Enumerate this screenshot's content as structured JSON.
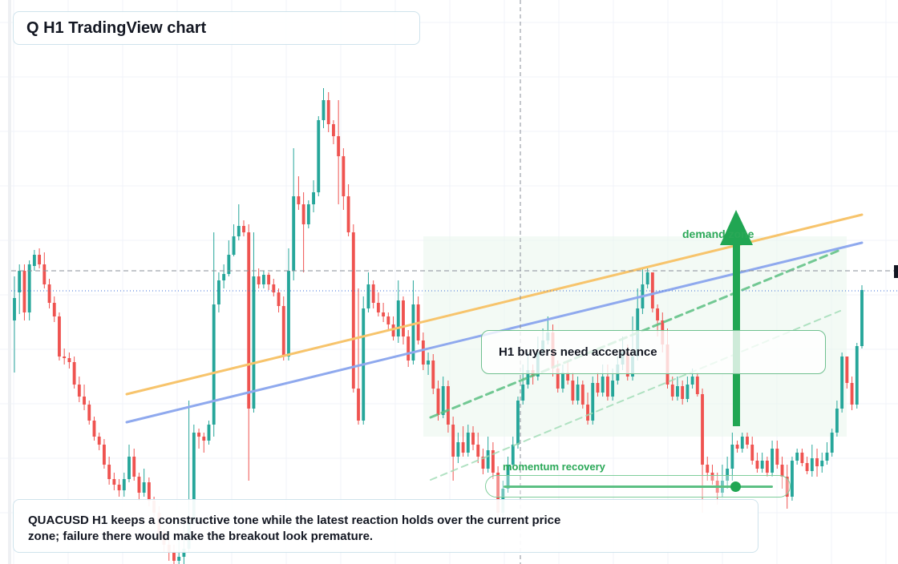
{
  "title": "Q H1 TradingView chart",
  "callout": {
    "text": "H1 buyers need acceptance"
  },
  "demand_zone": {
    "label": "demand zone"
  },
  "momentum": {
    "label": "momentum recovery",
    "level": 0.9
  },
  "note": {
    "text": "QUACUSD H1 keeps a constructive tone while the latest reaction holds over the current price zone; failure there would make the breakout look premature."
  },
  "colors": {
    "bull": "#26a69a",
    "bear": "#ef5350",
    "orange_line": "#f7c46c",
    "blue_line": "#8fa9ee",
    "green_accent": "#21a653",
    "zone_fill": "#e8f6ec"
  },
  "chart_data": {
    "type": "candlestick",
    "symbol": "QUACUSD",
    "timeframe": "H1",
    "ylim": [
      0,
      704
    ],
    "ohlc": [
      [
        400,
        372,
        465,
        345
      ],
      [
        365,
        338,
        392,
        330
      ],
      [
        338,
        390,
        400,
        330
      ],
      [
        390,
        330,
        400,
        325
      ],
      [
        332,
        318,
        338,
        312
      ],
      [
        318,
        330,
        335,
        310
      ],
      [
        330,
        355,
        360,
        315
      ],
      [
        355,
        378,
        385,
        348
      ],
      [
        378,
        395,
        402,
        370
      ],
      [
        395,
        445,
        450,
        390
      ],
      [
        445,
        447,
        455,
        435
      ],
      [
        447,
        452,
        460,
        440
      ],
      [
        452,
        480,
        485,
        445
      ],
      [
        480,
        495,
        502,
        470
      ],
      [
        495,
        505,
        512,
        480
      ],
      [
        505,
        525,
        530,
        500
      ],
      [
        525,
        545,
        550,
        520
      ],
      [
        545,
        555,
        562,
        540
      ],
      [
        555,
        580,
        585,
        548
      ],
      [
        580,
        598,
        605,
        570
      ],
      [
        598,
        605,
        612,
        590
      ],
      [
        605,
        612,
        620,
        598
      ],
      [
        612,
        598,
        620,
        590
      ],
      [
        598,
        570,
        602,
        555
      ],
      [
        570,
        595,
        600,
        560
      ],
      [
        595,
        615,
        625,
        590
      ],
      [
        615,
        602,
        620,
        585
      ],
      [
        602,
        625,
        632,
        596
      ],
      [
        625,
        640,
        655,
        620
      ],
      [
        640,
        665,
        672,
        632
      ],
      [
        665,
        680,
        690,
        660
      ],
      [
        680,
        690,
        700,
        670
      ],
      [
        690,
        700,
        704,
        680
      ],
      [
        700,
        695,
        704,
        670
      ],
      [
        695,
        685,
        704,
        650
      ],
      [
        685,
        650,
        690,
        500
      ],
      [
        650,
        540,
        655,
        530
      ],
      [
        540,
        545,
        560,
        535
      ],
      [
        545,
        550,
        565,
        540
      ],
      [
        550,
        530,
        555,
        525
      ],
      [
        530,
        380,
        545,
        290
      ],
      [
        380,
        350,
        390,
        340
      ],
      [
        350,
        342,
        360,
        330
      ],
      [
        342,
        318,
        345,
        300
      ],
      [
        318,
        295,
        320,
        280
      ],
      [
        295,
        282,
        300,
        255
      ],
      [
        282,
        290,
        295,
        275
      ],
      [
        290,
        510,
        600,
        280
      ],
      [
        510,
        345,
        515,
        290
      ],
      [
        345,
        355,
        360,
        335
      ],
      [
        355,
        343,
        360,
        338
      ],
      [
        343,
        355,
        362,
        340
      ],
      [
        355,
        365,
        370,
        348
      ],
      [
        365,
        382,
        390,
        360
      ],
      [
        382,
        445,
        450,
        370
      ],
      [
        445,
        338,
        450,
        310
      ],
      [
        338,
        245,
        350,
        185
      ],
      [
        245,
        255,
        262,
        220
      ],
      [
        255,
        280,
        340,
        240
      ],
      [
        280,
        255,
        285,
        250
      ],
      [
        255,
        240,
        265,
        225
      ],
      [
        240,
        150,
        245,
        145
      ],
      [
        150,
        125,
        160,
        110
      ],
      [
        125,
        155,
        165,
        115
      ],
      [
        155,
        170,
        180,
        150
      ],
      [
        170,
        195,
        255,
        125
      ],
      [
        195,
        245,
        262,
        185
      ],
      [
        245,
        290,
        295,
        230
      ],
      [
        290,
        485,
        490,
        280
      ],
      [
        485,
        525,
        530,
        360
      ],
      [
        525,
        385,
        530,
        370
      ],
      [
        385,
        355,
        390,
        340
      ],
      [
        355,
        378,
        385,
        350
      ],
      [
        378,
        390,
        395,
        365
      ],
      [
        390,
        395,
        402,
        378
      ],
      [
        395,
        405,
        412,
        390
      ],
      [
        405,
        420,
        425,
        395
      ],
      [
        420,
        375,
        428,
        350
      ],
      [
        375,
        420,
        430,
        370
      ],
      [
        420,
        450,
        458,
        412
      ],
      [
        450,
        380,
        455,
        350
      ],
      [
        380,
        425,
        430,
        370
      ],
      [
        425,
        455,
        462,
        415
      ],
      [
        455,
        450,
        468,
        440
      ],
      [
        450,
        485,
        492,
        442
      ],
      [
        485,
        518,
        525,
        475
      ],
      [
        518,
        482,
        522,
        470
      ],
      [
        482,
        530,
        540,
        475
      ],
      [
        530,
        570,
        600,
        520
      ],
      [
        570,
        552,
        578,
        540
      ],
      [
        552,
        565,
        570,
        532
      ],
      [
        565,
        540,
        570,
        530
      ],
      [
        540,
        555,
        562,
        532
      ],
      [
        555,
        570,
        578,
        540
      ],
      [
        570,
        585,
        592,
        560
      ],
      [
        585,
        562,
        590,
        545
      ],
      [
        562,
        590,
        598,
        552
      ],
      [
        590,
        640,
        650,
        582
      ],
      [
        640,
        610,
        645,
        600
      ],
      [
        610,
        580,
        615,
        570
      ],
      [
        580,
        555,
        585,
        545
      ],
      [
        555,
        500,
        560,
        495
      ],
      [
        500,
        480,
        505,
        455
      ],
      [
        480,
        462,
        485,
        440
      ],
      [
        462,
        470,
        480,
        455
      ],
      [
        470,
        440,
        475,
        420
      ],
      [
        440,
        425,
        445,
        410
      ],
      [
        425,
        415,
        430,
        395
      ],
      [
        415,
        460,
        470,
        405
      ],
      [
        460,
        485,
        490,
        450
      ],
      [
        485,
        465,
        490,
        455
      ],
      [
        465,
        475,
        480,
        450
      ],
      [
        475,
        500,
        505,
        465
      ],
      [
        500,
        480,
        505,
        470
      ],
      [
        480,
        505,
        510,
        475
      ],
      [
        505,
        525,
        530,
        490
      ],
      [
        525,
        478,
        530,
        470
      ],
      [
        478,
        490,
        495,
        465
      ],
      [
        490,
        470,
        495,
        455
      ],
      [
        470,
        495,
        500,
        455
      ],
      [
        495,
        475,
        500,
        460
      ],
      [
        475,
        455,
        480,
        445
      ],
      [
        455,
        440,
        462,
        420
      ],
      [
        440,
        470,
        475,
        430
      ],
      [
        470,
        445,
        475,
        395
      ],
      [
        445,
        385,
        450,
        360
      ],
      [
        385,
        355,
        392,
        335
      ],
      [
        355,
        340,
        360,
        335
      ],
      [
        340,
        385,
        390,
        345
      ],
      [
        385,
        400,
        420,
        380
      ],
      [
        400,
        430,
        440,
        390
      ],
      [
        430,
        480,
        485,
        410
      ],
      [
        480,
        495,
        500,
        470
      ],
      [
        495,
        482,
        500,
        470
      ],
      [
        482,
        498,
        505,
        475
      ],
      [
        498,
        480,
        502,
        470
      ],
      [
        480,
        470,
        485,
        460
      ],
      [
        470,
        492,
        495,
        465
      ],
      [
        492,
        580,
        640,
        485
      ],
      [
        580,
        590,
        600,
        570
      ],
      [
        590,
        600,
        605,
        580
      ],
      [
        600,
        615,
        630,
        590
      ],
      [
        615,
        600,
        620,
        580
      ],
      [
        600,
        585,
        610,
        570
      ],
      [
        585,
        555,
        600,
        540
      ],
      [
        555,
        560,
        565,
        550
      ],
      [
        560,
        545,
        565,
        540
      ],
      [
        545,
        555,
        560,
        540
      ],
      [
        555,
        575,
        580,
        545
      ],
      [
        575,
        585,
        590,
        565
      ],
      [
        585,
        575,
        590,
        565
      ],
      [
        575,
        590,
        595,
        570
      ],
      [
        590,
        560,
        595,
        550
      ],
      [
        560,
        580,
        585,
        550
      ],
      [
        580,
        595,
        610,
        570
      ],
      [
        595,
        620,
        635,
        580
      ],
      [
        620,
        575,
        625,
        570
      ],
      [
        575,
        565,
        580,
        560
      ],
      [
        565,
        578,
        582,
        560
      ],
      [
        578,
        588,
        592,
        570
      ],
      [
        588,
        572,
        595,
        555
      ],
      [
        572,
        582,
        595,
        560
      ],
      [
        582,
        575,
        590,
        565
      ],
      [
        575,
        565,
        580,
        552
      ],
      [
        565,
        540,
        570,
        535
      ],
      [
        540,
        510,
        545,
        500
      ],
      [
        510,
        445,
        515,
        440
      ],
      [
        445,
        478,
        485,
        445
      ],
      [
        478,
        505,
        512,
        470
      ],
      [
        505,
        432,
        510,
        428
      ],
      [
        432,
        362,
        435,
        356
      ]
    ],
    "overlays": [
      {
        "kind": "line",
        "color": "orange",
        "from": [
          158,
          492
        ],
        "to": [
          1075,
          268
        ]
      },
      {
        "kind": "line",
        "color": "blue",
        "from": [
          158,
          527
        ],
        "to": [
          1075,
          303
        ]
      },
      {
        "kind": "line",
        "color": "green-dashed",
        "from": [
          537,
          521
        ],
        "to": [
          1048,
          312
        ]
      },
      {
        "kind": "line",
        "color": "green-dashed-light",
        "from": [
          537,
          599
        ],
        "to": [
          1048,
          388
        ]
      },
      {
        "kind": "horizontal",
        "style": "dashed",
        "y": 338
      },
      {
        "kind": "horizontal",
        "style": "dotted",
        "y": 363
      },
      {
        "kind": "vertical",
        "style": "dashed",
        "x": 649
      }
    ]
  }
}
